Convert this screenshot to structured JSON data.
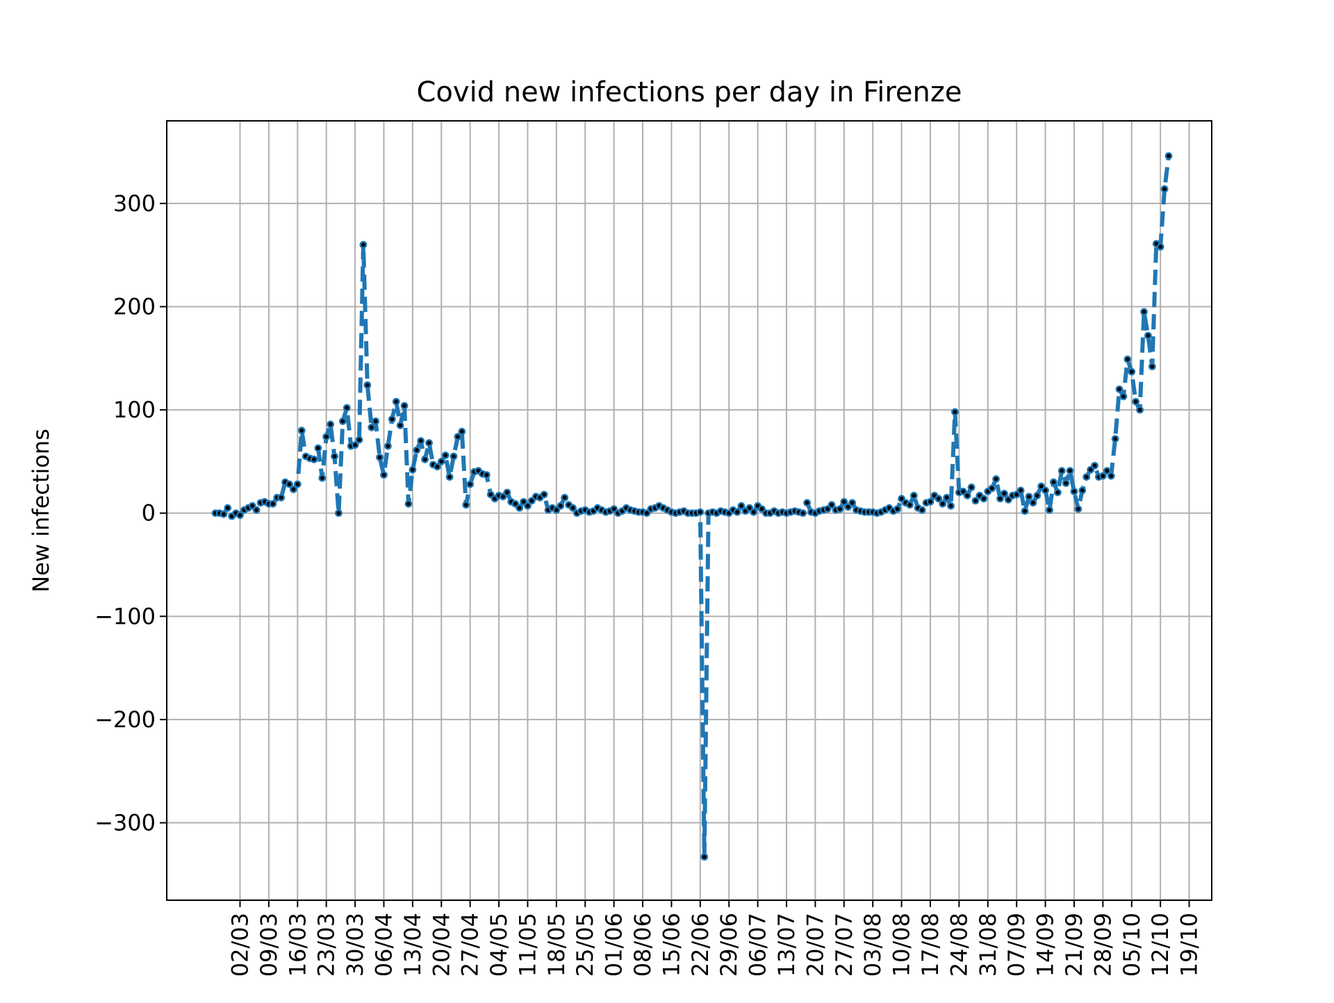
{
  "chart_data": {
    "type": "line",
    "title": "Covid new infections per day in Firenze",
    "xlabel": "",
    "ylabel": "New infections",
    "ylim": [
      -375,
      380
    ],
    "yticks": [
      -300,
      -200,
      -100,
      0,
      100,
      200,
      300
    ],
    "ytick_labels": [
      "−300",
      "−200",
      "−100",
      "0",
      "100",
      "200",
      "300"
    ],
    "xtick_labels": [
      "02/03",
      "09/03",
      "16/03",
      "23/03",
      "30/03",
      "06/04",
      "13/04",
      "20/04",
      "27/04",
      "04/05",
      "11/05",
      "18/05",
      "25/05",
      "01/06",
      "08/06",
      "15/06",
      "22/06",
      "29/06",
      "06/07",
      "13/07",
      "20/07",
      "27/07",
      "03/08",
      "10/08",
      "17/08",
      "24/08",
      "31/08",
      "07/09",
      "14/09",
      "21/09",
      "28/09",
      "05/10",
      "12/10",
      "19/10"
    ],
    "x_start_date": "2020-02-25",
    "grid": true,
    "line_color": "#1f77b4",
    "line_style": "dashed",
    "marker_color": "#000000",
    "series": [
      {
        "name": "",
        "values": [
          0,
          0,
          -1,
          5,
          -3,
          0,
          -2,
          3,
          5,
          7,
          3,
          10,
          11,
          9,
          9,
          15,
          15,
          30,
          28,
          23,
          28,
          80,
          55,
          53,
          52,
          63,
          34,
          74,
          86,
          55,
          0,
          89,
          102,
          65,
          66,
          71,
          260,
          124,
          83,
          89,
          54,
          37,
          65,
          91,
          108,
          85,
          104,
          9,
          42,
          61,
          70,
          52,
          68,
          47,
          45,
          50,
          56,
          35,
          55,
          74,
          79,
          8,
          28,
          40,
          41,
          38,
          37,
          18,
          14,
          17,
          16,
          20,
          11,
          9,
          5,
          11,
          7,
          12,
          16,
          15,
          18,
          3,
          5,
          3,
          7,
          15,
          8,
          5,
          0,
          2,
          3,
          1,
          2,
          5,
          3,
          1,
          2,
          4,
          0,
          2,
          5,
          3,
          2,
          1,
          1,
          0,
          4,
          5,
          7,
          5,
          3,
          1,
          0,
          1,
          2,
          0,
          0,
          0,
          1,
          -333,
          0,
          1,
          0,
          2,
          1,
          0,
          3,
          1,
          7,
          2,
          5,
          1,
          7,
          4,
          0,
          0,
          2,
          0,
          1,
          0,
          1,
          2,
          1,
          0,
          10,
          1,
          0,
          2,
          3,
          4,
          8,
          3,
          4,
          11,
          6,
          10,
          3,
          2,
          1,
          1,
          1,
          0,
          1,
          3,
          5,
          2,
          4,
          14,
          10,
          8,
          17,
          5,
          3,
          10,
          11,
          17,
          14,
          9,
          15,
          7,
          98,
          20,
          21,
          17,
          25,
          12,
          17,
          14,
          21,
          24,
          33,
          14,
          19,
          13,
          17,
          18,
          22,
          2,
          16,
          10,
          17,
          26,
          22,
          3,
          30,
          20,
          41,
          29,
          41,
          21,
          4,
          22,
          35,
          42,
          46,
          35,
          36,
          41,
          36,
          72,
          120,
          113,
          149,
          137,
          108,
          100,
          195,
          172,
          142,
          261,
          258,
          314,
          346
        ]
      }
    ]
  }
}
